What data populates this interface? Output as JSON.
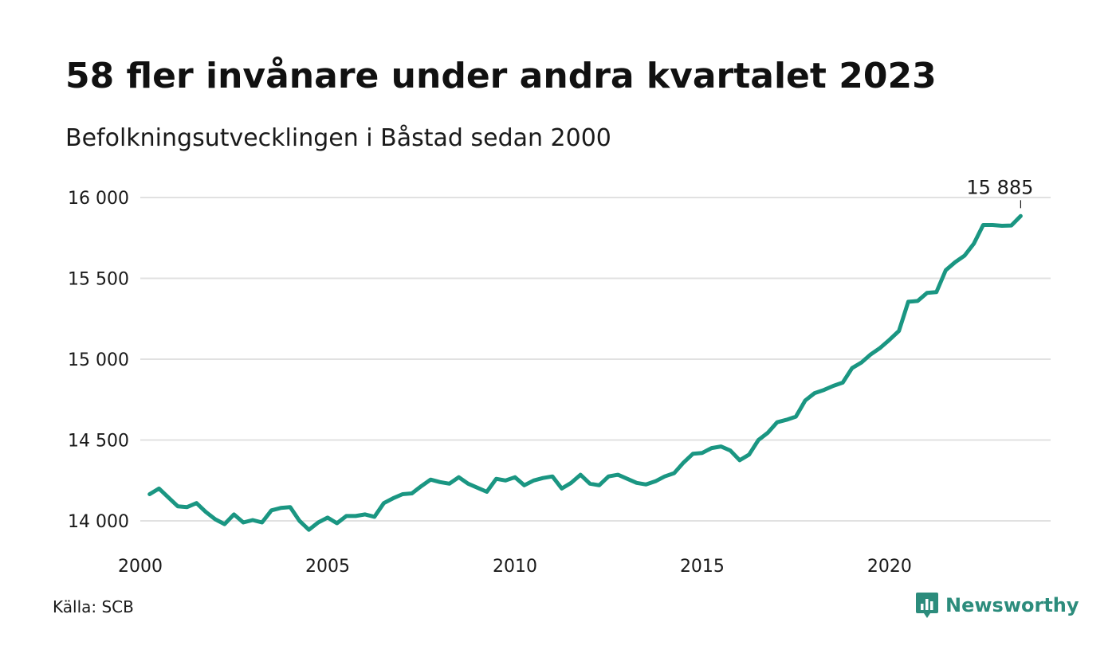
{
  "header": {
    "title": "58 fler invånare under andra kvartalet 2023",
    "subtitle": "Befolkningsutvecklingen i Båstad sedan 2000"
  },
  "footer": {
    "source": "Källa: SCB",
    "brand": "Newsworthy"
  },
  "colors": {
    "line": "#1a9682",
    "grid": "#e1e1e1",
    "brand": "#2c8c7c"
  },
  "chart_data": {
    "type": "line",
    "title": "58 fler invånare under andra kvartalet 2023",
    "subtitle": "Befolkningsutvecklingen i Båstad sedan 2000",
    "ylim": [
      13950,
      16000
    ],
    "xlim": [
      2000,
      2024.5
    ],
    "y_ticks": [
      14000,
      14500,
      15000,
      15500,
      16000
    ],
    "y_tick_labels": [
      "14 000",
      "14 500",
      "15 000",
      "15 500",
      "16 000"
    ],
    "x_ticks": [
      2000,
      2005,
      2010,
      2015,
      2020
    ],
    "x_tick_labels": [
      "2000",
      "2005",
      "2010",
      "2015",
      "2020"
    ],
    "grid": true,
    "last_value_label": "15 885",
    "series": [
      {
        "x": [
          2000.25,
          2000.5,
          2000.75,
          2001.0,
          2001.25,
          2001.5,
          2001.75,
          2002.0,
          2002.25,
          2002.5,
          2002.75,
          2003.0,
          2003.25,
          2003.5,
          2003.75,
          2004.0,
          2004.25,
          2004.5,
          2004.75,
          2005.0,
          2005.25,
          2005.5,
          2005.75,
          2006.0,
          2006.25,
          2006.5,
          2006.75,
          2007.0,
          2007.25,
          2007.5,
          2007.75,
          2008.0,
          2008.25,
          2008.5,
          2008.75,
          2009.0,
          2009.25,
          2009.5,
          2009.75,
          2010.0,
          2010.25,
          2010.5,
          2010.75,
          2011.0,
          2011.25,
          2011.5,
          2011.75,
          2012.0,
          2012.25,
          2012.5,
          2012.75,
          2013.0,
          2013.25,
          2013.5,
          2013.75,
          2014.0,
          2014.25,
          2014.5,
          2014.75,
          2015.0,
          2015.25,
          2015.5,
          2015.75,
          2016.0,
          2016.25,
          2016.5,
          2016.75,
          2017.0,
          2017.25,
          2017.5,
          2017.75,
          2018.0,
          2018.25,
          2018.5,
          2018.75,
          2019.0,
          2019.25,
          2019.5,
          2019.75,
          2020.0,
          2020.25,
          2020.5,
          2020.75,
          2021.0,
          2021.25,
          2021.5,
          2021.75,
          2022.0,
          2022.25,
          2022.5,
          2022.75,
          2023.0,
          2023.25,
          2023.5
        ],
        "values": [
          14165,
          14200,
          14145,
          14090,
          14085,
          14110,
          14055,
          14010,
          13980,
          14040,
          13990,
          14005,
          13990,
          14065,
          14080,
          14085,
          14000,
          13945,
          13990,
          14020,
          13985,
          14030,
          14030,
          14040,
          14025,
          14110,
          14140,
          14165,
          14170,
          14215,
          14255,
          14240,
          14230,
          14270,
          14230,
          14205,
          14180,
          14260,
          14250,
          14270,
          14220,
          14250,
          14265,
          14275,
          14200,
          14235,
          14285,
          14230,
          14220,
          14275,
          14285,
          14260,
          14235,
          14225,
          14245,
          14275,
          14295,
          14360,
          14415,
          14420,
          14450,
          14460,
          14435,
          14375,
          14410,
          14500,
          14545,
          14610,
          14625,
          14645,
          14745,
          14790,
          14810,
          14835,
          14855,
          14945,
          14980,
          15030,
          15070,
          15120,
          15175,
          15355,
          15360,
          15410,
          15415,
          15550,
          15600,
          15640,
          15715,
          15830,
          15830,
          15825,
          15827,
          15885
        ]
      }
    ]
  }
}
